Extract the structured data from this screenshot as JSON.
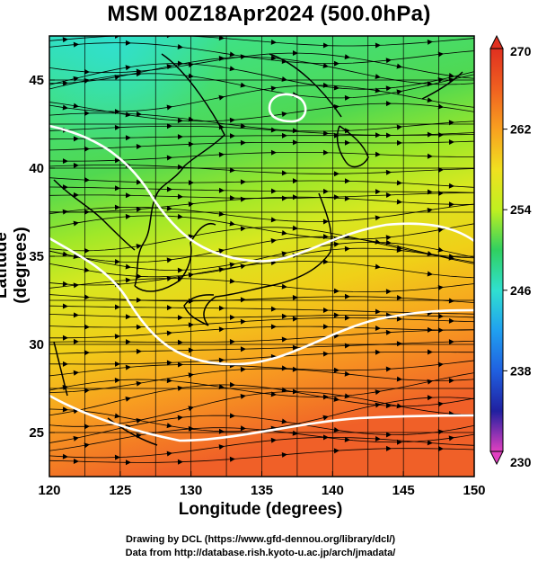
{
  "title": "MSM 00Z18Apr2024 (500.0hPa)",
  "axes": {
    "xlabel": "Longitude (degrees)",
    "ylabel": "Latitude  (degrees)",
    "x_range": [
      120,
      150
    ],
    "y_range": [
      22.5,
      47.5
    ],
    "x_ticks": [
      "120",
      "125",
      "130",
      "135",
      "140",
      "145",
      "150"
    ],
    "y_ticks": [
      "25",
      "30",
      "35",
      "40",
      "45"
    ]
  },
  "colorbar": {
    "range": [
      230,
      270
    ],
    "tick_labels": [
      "270",
      "262",
      "254",
      "246",
      "238",
      "230"
    ],
    "colors": [
      "#e040c0",
      "#7020c0",
      "#2020a0",
      "#2060e0",
      "#20a0f0",
      "#30e0d0",
      "#30d060",
      "#60e030",
      "#c0f020",
      "#f0e020",
      "#f8a020",
      "#f06020",
      "#e03020"
    ]
  },
  "credits": {
    "line1": "Drawing by DCL (https://www.gfd-dennou.org/library/dcl/)",
    "line2": "Data from http://database.rish.kyoto-u.ac.jp/arch/jmadata/"
  }
}
